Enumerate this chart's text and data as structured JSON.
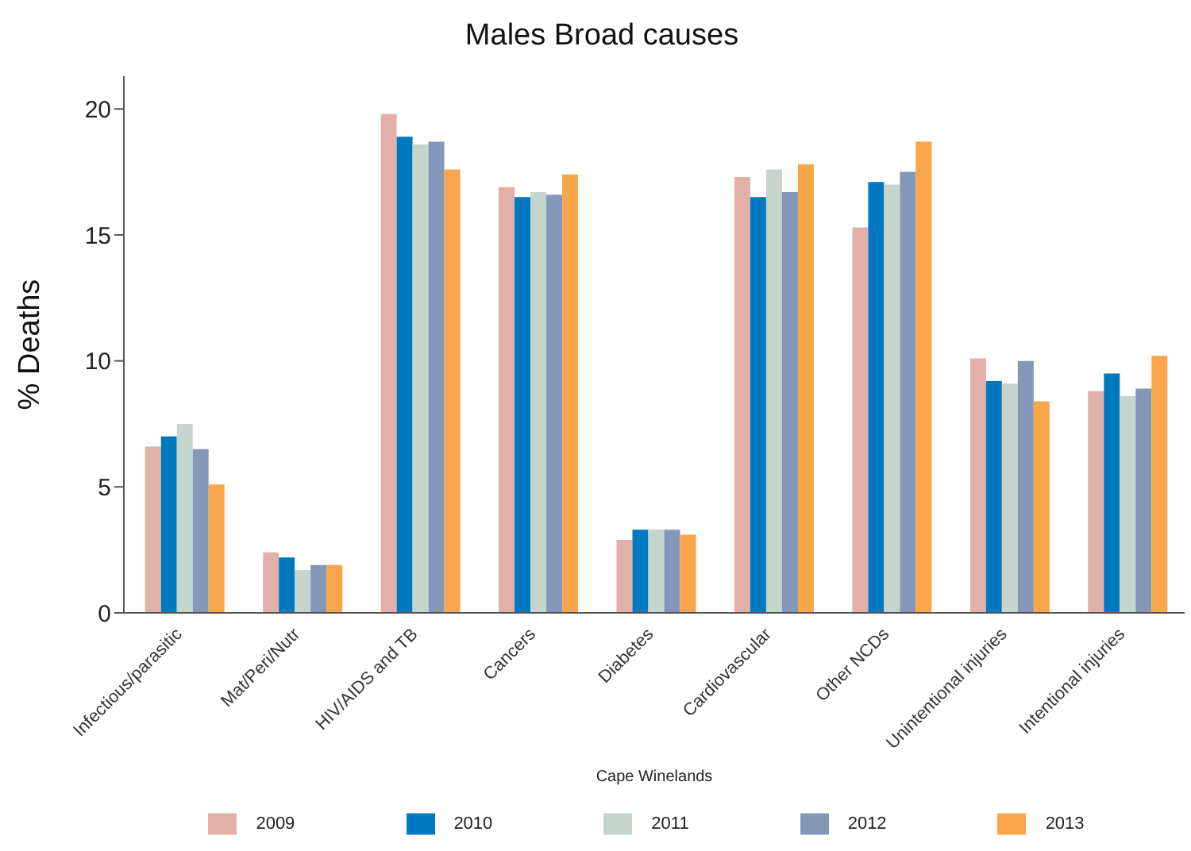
{
  "chart_data": {
    "type": "bar",
    "title": "Males Broad causes",
    "xlabel": "Cape Winelands",
    "ylabel": "% Deaths",
    "categories": [
      "Infectious/parasitic",
      "Mat/Peri/Nutr",
      "HIV/AIDS and TB",
      "Cancers",
      "Diabetes",
      "Cardiovascular",
      "Other NCDs",
      "Unintentional injuries",
      "Intentional injuries"
    ],
    "series": [
      {
        "name": "2009",
        "color": "#e2b0a8",
        "values": [
          6.6,
          2.4,
          19.8,
          16.9,
          2.9,
          17.3,
          15.3,
          10.1,
          8.8
        ]
      },
      {
        "name": "2010",
        "color": "#0079c1",
        "values": [
          7.0,
          2.2,
          18.9,
          16.5,
          3.3,
          16.5,
          17.1,
          9.2,
          9.5
        ]
      },
      {
        "name": "2011",
        "color": "#c5d5cb",
        "values": [
          7.5,
          1.7,
          18.6,
          16.7,
          3.3,
          17.6,
          17.0,
          9.1,
          8.6
        ]
      },
      {
        "name": "2012",
        "color": "#8497b9",
        "values": [
          6.5,
          1.9,
          18.7,
          16.6,
          3.3,
          16.7,
          17.5,
          10.0,
          8.9
        ]
      },
      {
        "name": "2013",
        "color": "#f9a54c",
        "values": [
          5.1,
          1.9,
          17.6,
          17.4,
          3.1,
          17.8,
          18.7,
          8.4,
          10.2
        ]
      }
    ],
    "ylim": [
      0,
      21.3
    ],
    "yticks": [
      0,
      5,
      10,
      15,
      20
    ],
    "grid": false,
    "legend": "bottom"
  }
}
